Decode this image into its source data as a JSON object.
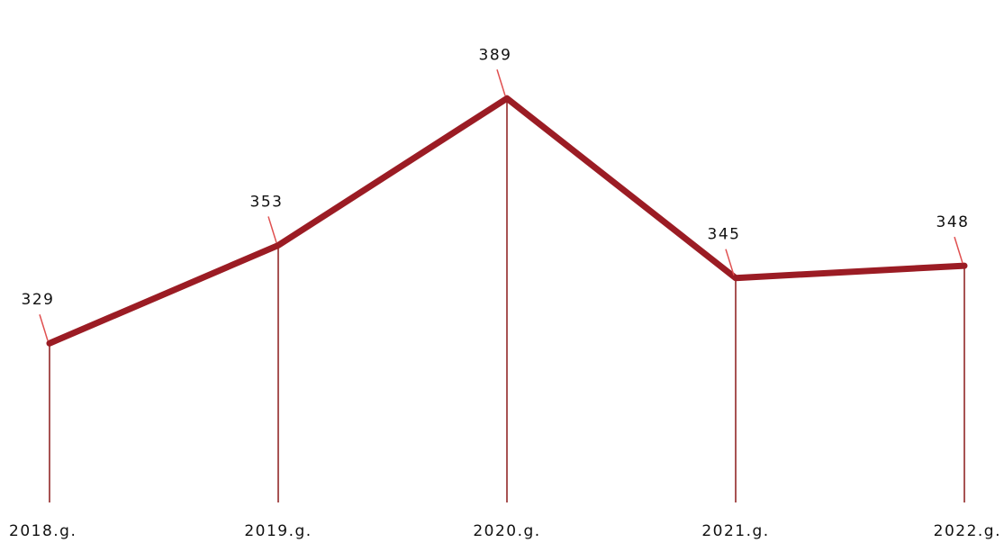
{
  "chart_data": {
    "type": "line",
    "categories": [
      "2018.g.",
      "2019.g.",
      "2020.g.",
      "2021.g.",
      "2022.g."
    ],
    "series": [
      {
        "color": "#9b1c24",
        "values": [
          329,
          353,
          389,
          345,
          348
        ]
      }
    ],
    "ylim": [
      290,
      400
    ]
  }
}
